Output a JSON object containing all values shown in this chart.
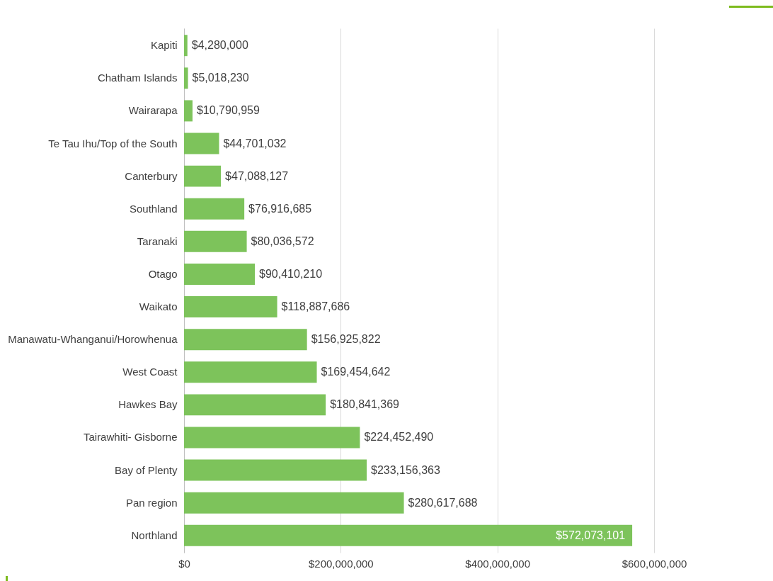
{
  "chart_data": {
    "type": "bar",
    "orientation": "horizontal",
    "categories": [
      "Kapiti",
      "Chatham Islands",
      "Wairarapa",
      "Te Tau Ihu/Top of the South",
      "Canterbury",
      "Southland",
      "Taranaki",
      "Otago",
      "Waikato",
      "Manawatu-Whanganui/Horowhenua",
      "West Coast",
      "Hawkes Bay",
      "Tairawhiti- Gisborne",
      "Bay of Plenty",
      "Pan region",
      "Northland"
    ],
    "values": [
      4280000,
      5018230,
      10790959,
      44701032,
      47088127,
      76916685,
      80036572,
      90410210,
      118887686,
      156925822,
      169454642,
      180841369,
      224452490,
      233156363,
      280617688,
      572073101
    ],
    "value_labels": [
      "$4,280,000",
      "$5,018,230",
      "$10,790,959",
      "$44,701,032",
      "$47,088,127",
      "$76,916,685",
      "$80,036,572",
      "$90,410,210",
      "$118,887,686",
      "$156,925,822",
      "$169,454,642",
      "$180,841,369",
      "$224,452,490",
      "$233,156,363",
      "$280,617,688",
      "$572,073,101"
    ],
    "color": "#7dc35b",
    "xlim": [
      0,
      600000000
    ],
    "xticks": [
      {
        "value": 0,
        "label": "$0"
      },
      {
        "value": 200000000,
        "label": "$200,000,000"
      },
      {
        "value": 400000000,
        "label": "$400,000,000"
      },
      {
        "value": 600000000,
        "label": "$600,000,000"
      }
    ],
    "grid": "x"
  }
}
